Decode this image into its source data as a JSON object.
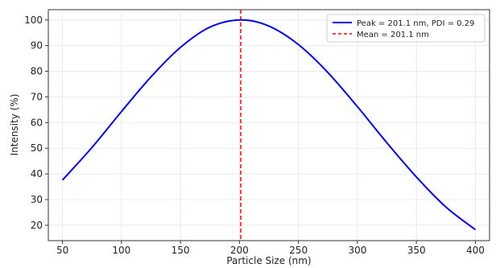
{
  "chart_data": {
    "type": "line",
    "title": "",
    "xlabel": "Particle Size (nm)",
    "ylabel": "Intensity (%)",
    "xlim": [
      38,
      412
    ],
    "ylim": [
      14,
      104
    ],
    "x_ticks": [
      50,
      100,
      150,
      200,
      250,
      300,
      350,
      400
    ],
    "y_ticks": [
      20,
      30,
      40,
      50,
      60,
      70,
      80,
      90,
      100
    ],
    "grid": true,
    "legend_position": "top-right",
    "series": [
      {
        "name": "Peak = 201.1 nm, PDI = 0.29",
        "color": "#0000ff",
        "style": "solid",
        "x": [
          50,
          75,
          100,
          125,
          150,
          175,
          201.1,
          225,
          250,
          275,
          300,
          325,
          350,
          375,
          400
        ],
        "y": [
          37.6,
          50.3,
          64.3,
          77.8,
          89.3,
          97.2,
          100,
          97.6,
          90.4,
          79.5,
          66.2,
          52.1,
          38.8,
          27.1,
          18.3
        ]
      }
    ],
    "vlines": [
      {
        "name": "Mean = 201.1 nm",
        "x": 201.1,
        "color": "#ff0000",
        "style": "dashed"
      }
    ]
  }
}
